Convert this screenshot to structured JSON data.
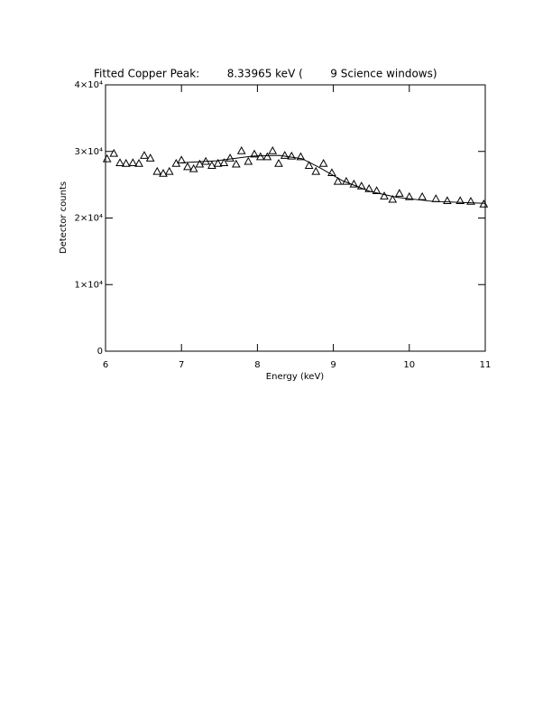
{
  "chart_data": {
    "type": "scatter",
    "title": "Fitted Copper Peak:        8.33965 keV (        9 Science windows)",
    "x_label": "Energy (keV)",
    "y_label": "Detector counts",
    "xlim": [
      6,
      11
    ],
    "xticks": [
      6,
      7,
      8,
      9,
      10,
      11
    ],
    "ylim": [
      0,
      40000
    ],
    "yticks": [
      0,
      {
        "value": 10000,
        "label": "1×10⁴"
      },
      {
        "value": 20000,
        "label": "2×10⁴"
      },
      {
        "value": 30000,
        "label": "3×10⁴"
      },
      {
        "value": 40000,
        "label": "4×10⁴"
      }
    ],
    "series": [
      {
        "type": "scatter",
        "color": "#000000",
        "x": [
          6.02,
          6.11,
          6.19,
          6.27,
          6.36,
          6.44,
          6.51,
          6.59,
          6.68,
          6.76,
          6.84,
          6.93,
          7.0,
          7.08,
          7.16,
          7.24,
          7.32,
          7.4,
          7.48,
          7.56,
          7.64,
          7.72,
          7.79,
          7.88,
          7.96,
          8.04,
          8.13,
          8.2,
          8.28,
          8.36,
          8.45,
          8.57,
          8.68,
          8.77,
          8.87,
          8.98,
          9.06,
          9.17,
          9.27,
          9.37,
          9.47,
          9.57,
          9.67,
          9.78,
          9.87,
          10.0,
          10.17,
          10.35,
          10.5,
          10.67,
          10.81,
          10.98
        ],
        "values": [
          28900,
          29700,
          28300,
          28200,
          28300,
          28200,
          29400,
          29000,
          27000,
          26700,
          27000,
          28200,
          28700,
          27700,
          27400,
          28100,
          28500,
          27900,
          28200,
          28300,
          29000,
          28100,
          30100,
          28500,
          29600,
          29200,
          29200,
          30100,
          28200,
          29400,
          29300,
          29200,
          27900,
          27000,
          28200,
          26800,
          25500,
          25500,
          25100,
          24800,
          24400,
          24100,
          23300,
          22800,
          23700,
          23200,
          23200,
          22900,
          22600,
          22600,
          22500,
          22100
        ]
      },
      {
        "type": "line",
        "color": "#000000",
        "x": [
          7.0,
          7.46,
          7.94,
          8.29,
          8.59,
          8.83,
          9.12,
          9.48,
          9.84,
          10.31,
          11.0
        ],
        "values": [
          28300,
          28600,
          29300,
          29400,
          28900,
          27500,
          25600,
          24000,
          23100,
          22500,
          22200
        ]
      }
    ]
  }
}
